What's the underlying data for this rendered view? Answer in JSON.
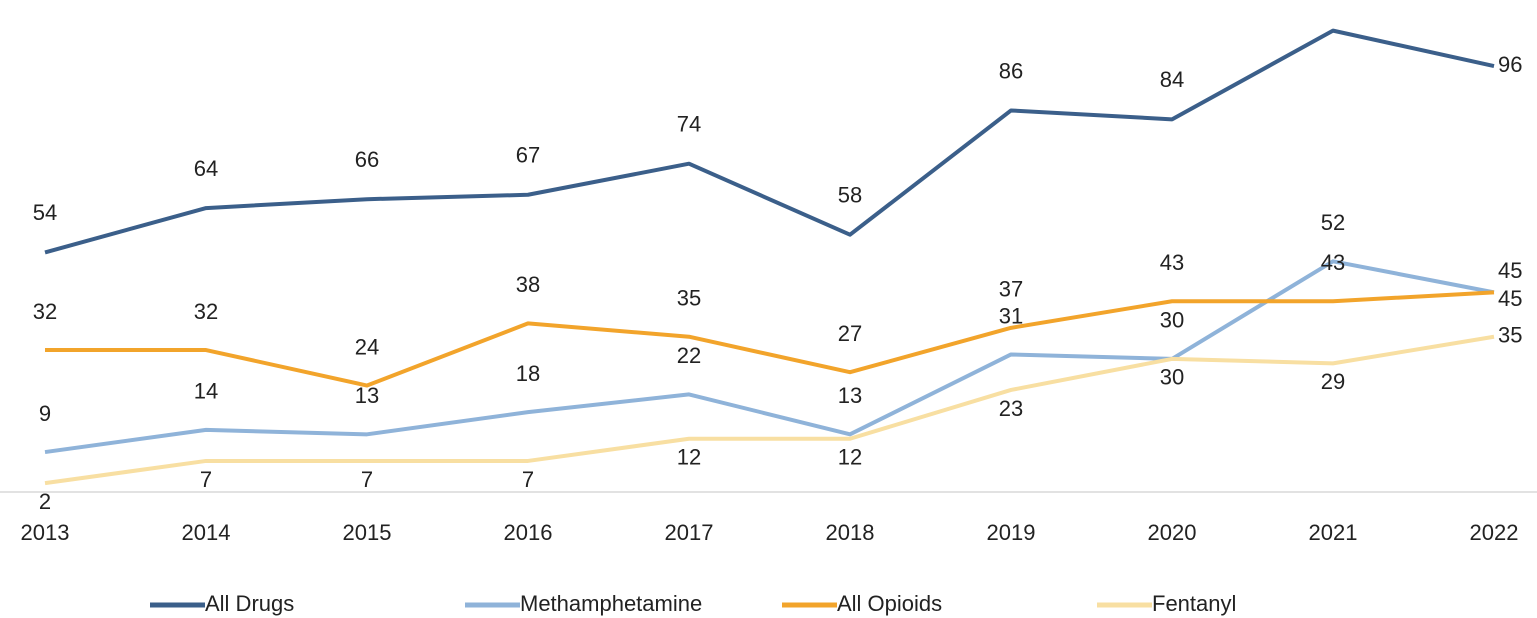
{
  "chart_data": {
    "type": "line",
    "categories": [
      "2013",
      "2014",
      "2015",
      "2016",
      "2017",
      "2018",
      "2019",
      "2020",
      "2021",
      "2022"
    ],
    "series": [
      {
        "name": "All Drugs",
        "color": "#3b5f8a",
        "values": [
          54,
          64,
          66,
          67,
          74,
          58,
          86,
          84,
          104,
          96
        ]
      },
      {
        "name": "Methamphetamine",
        "color": "#8fb3d9",
        "values": [
          9,
          14,
          13,
          18,
          22,
          13,
          31,
          30,
          52,
          45
        ]
      },
      {
        "name": "All Opioids",
        "color": "#f2a42b",
        "values": [
          32,
          32,
          24,
          38,
          35,
          27,
          37,
          43,
          43,
          45
        ]
      },
      {
        "name": "Fentanyl",
        "color": "#f8dfa2",
        "values": [
          2,
          7,
          7,
          7,
          12,
          12,
          23,
          30,
          29,
          35
        ]
      }
    ],
    "ylim": [
      0,
      110
    ],
    "legend": "bottom"
  }
}
